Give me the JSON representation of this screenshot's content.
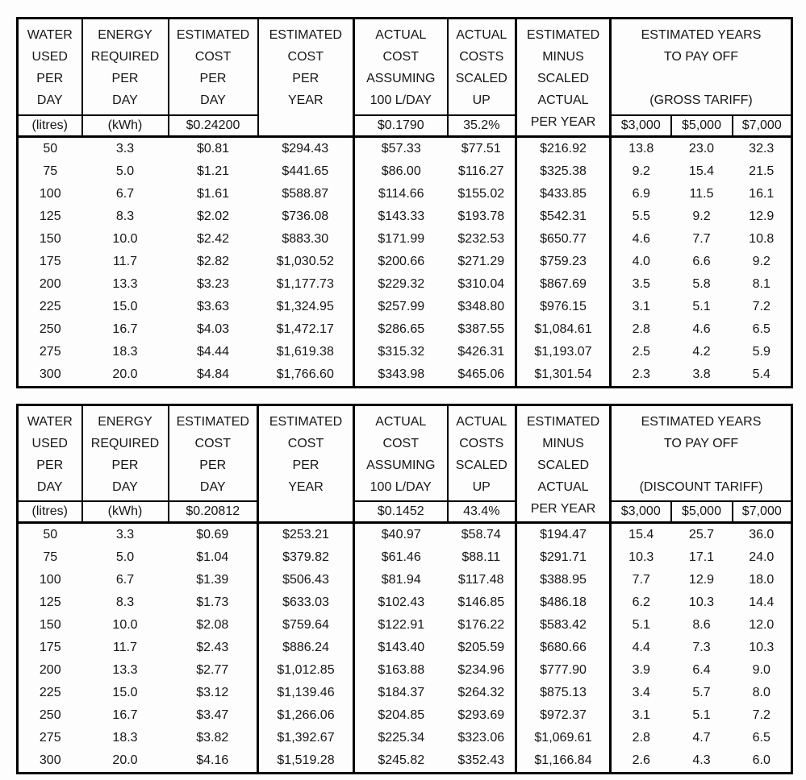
{
  "page": {
    "background": "#fdfdfd",
    "border_color": "#000000",
    "text_color": "#161616"
  },
  "chart_data": [
    {
      "type": "table",
      "tariff": "GROSS TARIFF",
      "header": {
        "water": "WATER\nUSED\nPER\nDAY",
        "energy": "ENERGY\nREQUIRED\nPER\nDAY",
        "est_cost_day": "ESTIMATED\nCOST\nPER\nDAY",
        "est_cost_year": "ESTIMATED\nCOST\nPER\nYEAR",
        "actual_cost": "ACTUAL\nCOST\nASSUMING\n100 L/DAY",
        "actual_scaled": "ACTUAL\nCOSTS\nSCALED\nUP",
        "est_minus": "ESTIMATED\nMINUS\nSCALED\nACTUAL\nPER YEAR",
        "payoff": "ESTIMATED YEARS\nTO PAY OFF\n\n(GROSS TARIFF)"
      },
      "subheader": {
        "water_unit": "(litres)",
        "energy_unit": "(kWh)",
        "rate_per_kwh": "$0.24200",
        "est_cost_year": "",
        "actual_rate": "$0.1790",
        "scale_pct": "35.2%",
        "payoff_3000": "$3,000",
        "payoff_5000": "$5,000",
        "payoff_7000": "$7,000"
      },
      "rows": [
        [
          "50",
          "3.3",
          "$0.81",
          "$294.43",
          "$57.33",
          "$77.51",
          "$216.92",
          "13.8",
          "23.0",
          "32.3"
        ],
        [
          "75",
          "5.0",
          "$1.21",
          "$441.65",
          "$86.00",
          "$116.27",
          "$325.38",
          "9.2",
          "15.4",
          "21.5"
        ],
        [
          "100",
          "6.7",
          "$1.61",
          "$588.87",
          "$114.66",
          "$155.02",
          "$433.85",
          "6.9",
          "11.5",
          "16.1"
        ],
        [
          "125",
          "8.3",
          "$2.02",
          "$736.08",
          "$143.33",
          "$193.78",
          "$542.31",
          "5.5",
          "9.2",
          "12.9"
        ],
        [
          "150",
          "10.0",
          "$2.42",
          "$883.30",
          "$171.99",
          "$232.53",
          "$650.77",
          "4.6",
          "7.7",
          "10.8"
        ],
        [
          "175",
          "11.7",
          "$2.82",
          "$1,030.52",
          "$200.66",
          "$271.29",
          "$759.23",
          "4.0",
          "6.6",
          "9.2"
        ],
        [
          "200",
          "13.3",
          "$3.23",
          "$1,177.73",
          "$229.32",
          "$310.04",
          "$867.69",
          "3.5",
          "5.8",
          "8.1"
        ],
        [
          "225",
          "15.0",
          "$3.63",
          "$1,324.95",
          "$257.99",
          "$348.80",
          "$976.15",
          "3.1",
          "5.1",
          "7.2"
        ],
        [
          "250",
          "16.7",
          "$4.03",
          "$1,472.17",
          "$286.65",
          "$387.55",
          "$1,084.61",
          "2.8",
          "4.6",
          "6.5"
        ],
        [
          "275",
          "18.3",
          "$4.44",
          "$1,619.38",
          "$315.32",
          "$426.31",
          "$1,193.07",
          "2.5",
          "4.2",
          "5.9"
        ],
        [
          "300",
          "20.0",
          "$4.84",
          "$1,766.60",
          "$343.98",
          "$465.06",
          "$1,301.54",
          "2.3",
          "3.8",
          "5.4"
        ]
      ]
    },
    {
      "type": "table",
      "tariff": "DISCOUNT TARIFF",
      "header": {
        "water": "WATER\nUSED\nPER\nDAY",
        "energy": "ENERGY\nREQUIRED\nPER\nDAY",
        "est_cost_day": "ESTIMATED\nCOST\nPER\nDAY",
        "est_cost_year": "ESTIMATED\nCOST\nPER\nYEAR",
        "actual_cost": "ACTUAL\nCOST\nASSUMING\n100 L/DAY",
        "actual_scaled": "ACTUAL\nCOSTS\nSCALED\nUP",
        "est_minus": "ESTIMATED\nMINUS\nSCALED\nACTUAL\nPER YEAR",
        "payoff": "ESTIMATED YEARS\nTO PAY OFF\n\n(DISCOUNT TARIFF)"
      },
      "subheader": {
        "water_unit": "(litres)",
        "energy_unit": "(kWh)",
        "rate_per_kwh": "$0.20812",
        "est_cost_year": "",
        "actual_rate": "$0.1452",
        "scale_pct": "43.4%",
        "payoff_3000": "$3,000",
        "payoff_5000": "$5,000",
        "payoff_7000": "$7,000"
      },
      "rows": [
        [
          "50",
          "3.3",
          "$0.69",
          "$253.21",
          "$40.97",
          "$58.74",
          "$194.47",
          "15.4",
          "25.7",
          "36.0"
        ],
        [
          "75",
          "5.0",
          "$1.04",
          "$379.82",
          "$61.46",
          "$88.11",
          "$291.71",
          "10.3",
          "17.1",
          "24.0"
        ],
        [
          "100",
          "6.7",
          "$1.39",
          "$506.43",
          "$81.94",
          "$117.48",
          "$388.95",
          "7.7",
          "12.9",
          "18.0"
        ],
        [
          "125",
          "8.3",
          "$1.73",
          "$633.03",
          "$102.43",
          "$146.85",
          "$486.18",
          "6.2",
          "10.3",
          "14.4"
        ],
        [
          "150",
          "10.0",
          "$2.08",
          "$759.64",
          "$122.91",
          "$176.22",
          "$583.42",
          "5.1",
          "8.6",
          "12.0"
        ],
        [
          "175",
          "11.7",
          "$2.43",
          "$886.24",
          "$143.40",
          "$205.59",
          "$680.66",
          "4.4",
          "7.3",
          "10.3"
        ],
        [
          "200",
          "13.3",
          "$2.77",
          "$1,012.85",
          "$163.88",
          "$234.96",
          "$777.90",
          "3.9",
          "6.4",
          "9.0"
        ],
        [
          "225",
          "15.0",
          "$3.12",
          "$1,139.46",
          "$184.37",
          "$264.32",
          "$875.13",
          "3.4",
          "5.7",
          "8.0"
        ],
        [
          "250",
          "16.7",
          "$3.47",
          "$1,266.06",
          "$204.85",
          "$293.69",
          "$972.37",
          "3.1",
          "5.1",
          "7.2"
        ],
        [
          "275",
          "18.3",
          "$3.82",
          "$1,392.67",
          "$225.34",
          "$323.06",
          "$1,069.61",
          "2.8",
          "4.7",
          "6.5"
        ],
        [
          "300",
          "20.0",
          "$4.16",
          "$1,519.28",
          "$245.82",
          "$352.43",
          "$1,166.84",
          "2.6",
          "4.3",
          "6.0"
        ]
      ]
    }
  ]
}
